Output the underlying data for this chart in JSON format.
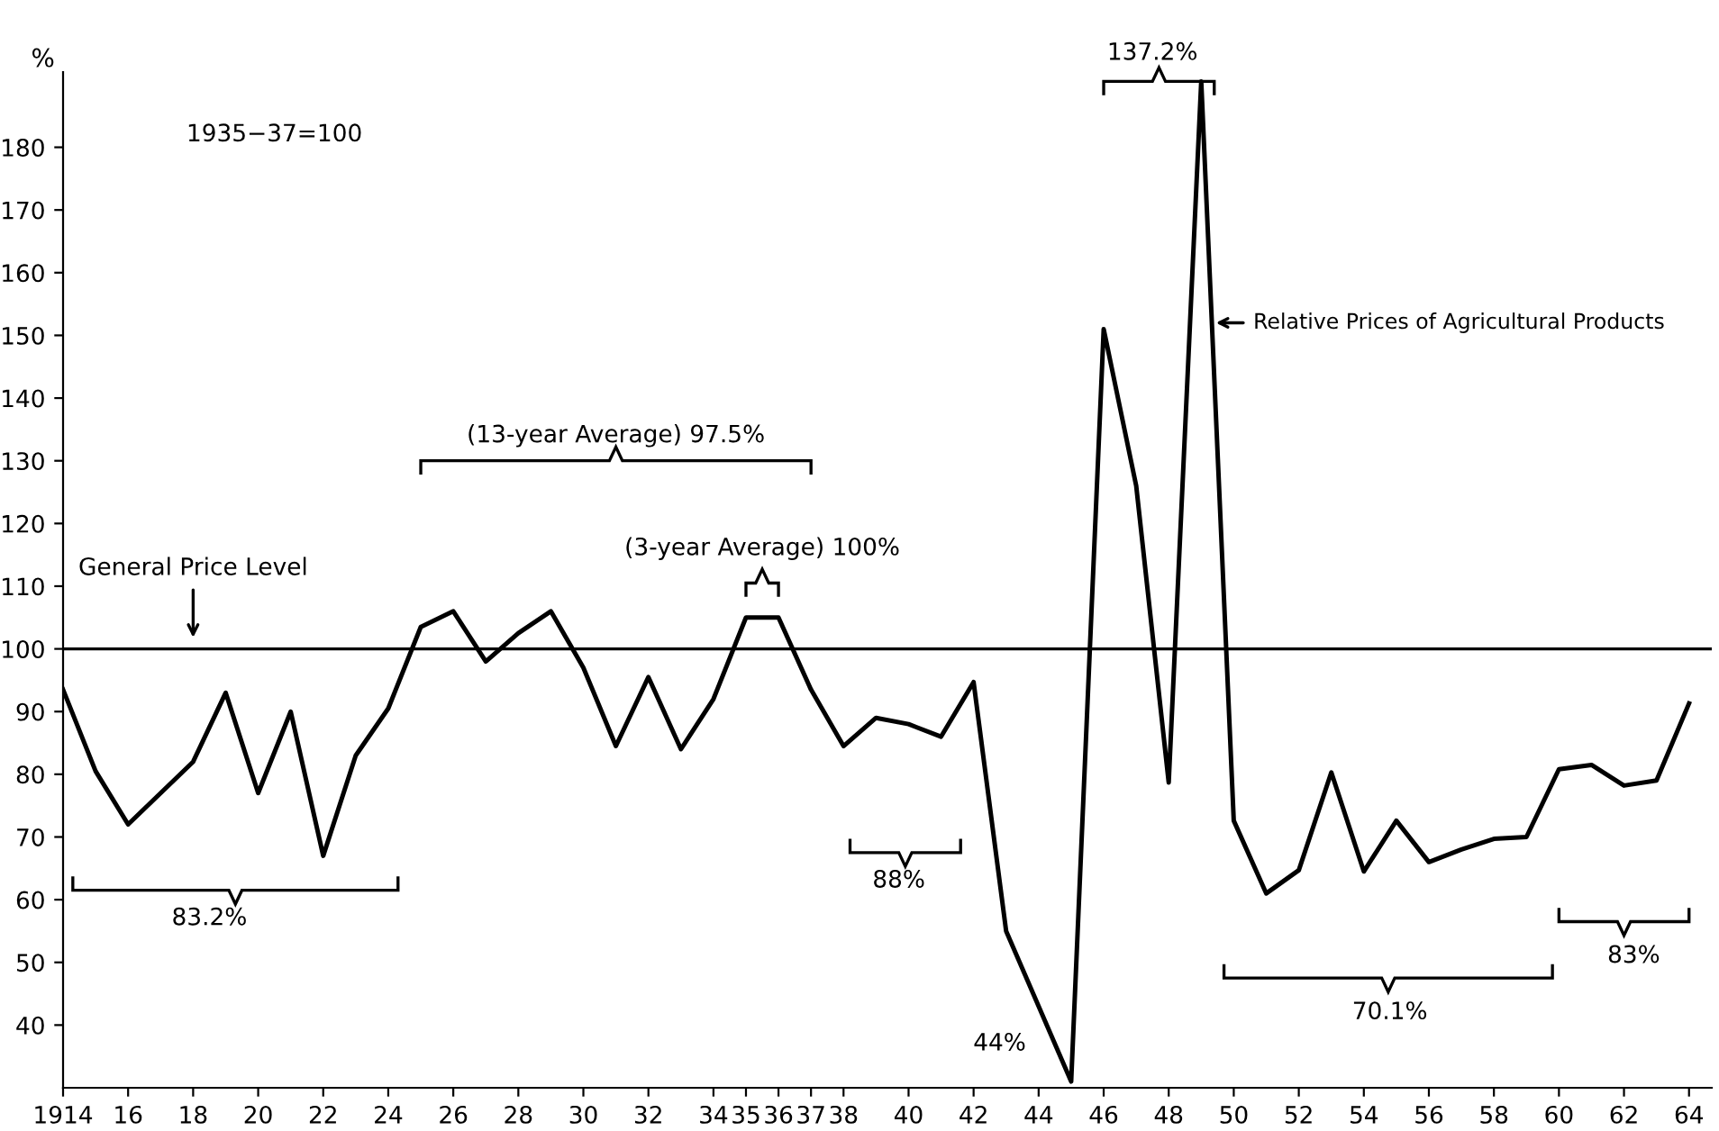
{
  "chart_data": {
    "type": "line",
    "ylabel": "%",
    "x": [
      1914,
      1915,
      1916,
      1917,
      1918,
      1919,
      1920,
      1921,
      1922,
      1923,
      1924,
      1925,
      1926,
      1927,
      1928,
      1929,
      1930,
      1931,
      1932,
      1933,
      1934,
      1935,
      1936,
      1937,
      1938,
      1939,
      1940,
      1941,
      1942,
      1943,
      1944,
      1945,
      1946,
      1947,
      1948,
      1949,
      1950,
      1951,
      1952,
      1953,
      1954,
      1955,
      1956,
      1957,
      1958,
      1959,
      1960,
      1961,
      1962,
      1963,
      1964
    ],
    "series": [
      {
        "name": "Relative Prices of Agricultural Products",
        "color": "#000000",
        "values": [
          93.5,
          80.5,
          72,
          77,
          82,
          93,
          77,
          90,
          67,
          83,
          90.5,
          103.5,
          106,
          98,
          102.5,
          106,
          97,
          84.5,
          95.5,
          84,
          92,
          105,
          105,
          93.5,
          84.5,
          89,
          88,
          86,
          94.7,
          55,
          43,
          31,
          151,
          126,
          78.7,
          190.5,
          72.6,
          61,
          64.7,
          80.3,
          64.5,
          72.6,
          66,
          68,
          69.7,
          70,
          80.8,
          81.5,
          78.2,
          79,
          91.3
        ]
      }
    ],
    "xlim": [
      1914,
      1964.7
    ],
    "ylim": [
      30,
      192
    ],
    "xticks": [
      {
        "value": 1914,
        "label": "1914"
      },
      {
        "value": 1916,
        "label": "16"
      },
      {
        "value": 1918,
        "label": "18"
      },
      {
        "value": 1920,
        "label": "20"
      },
      {
        "value": 1922,
        "label": "22"
      },
      {
        "value": 1924,
        "label": "24"
      },
      {
        "value": 1926,
        "label": "26"
      },
      {
        "value": 1928,
        "label": "28"
      },
      {
        "value": 1930,
        "label": "30"
      },
      {
        "value": 1932,
        "label": "32"
      },
      {
        "value": 1934,
        "label": "34"
      },
      {
        "value": 1935,
        "label": "35"
      },
      {
        "value": 1936,
        "label": "36"
      },
      {
        "value": 1937,
        "label": "37"
      },
      {
        "value": 1938,
        "label": "38"
      },
      {
        "value": 1940,
        "label": "40"
      },
      {
        "value": 1942,
        "label": "42"
      },
      {
        "value": 1944,
        "label": "44"
      },
      {
        "value": 1946,
        "label": "46"
      },
      {
        "value": 1948,
        "label": "48"
      },
      {
        "value": 1950,
        "label": "50"
      },
      {
        "value": 1952,
        "label": "52"
      },
      {
        "value": 1954,
        "label": "54"
      },
      {
        "value": 1956,
        "label": "56"
      },
      {
        "value": 1958,
        "label": "58"
      },
      {
        "value": 1960,
        "label": "60"
      },
      {
        "value": 1962,
        "label": "62"
      },
      {
        "value": 1964,
        "label": "64"
      }
    ],
    "yticks": [
      40,
      50,
      60,
      70,
      80,
      90,
      100,
      110,
      120,
      130,
      140,
      150,
      160,
      170,
      180
    ],
    "ref_lines": [
      {
        "axis": "y",
        "value": 100,
        "label": "General Price Level",
        "color": "#000000",
        "line_style": "solid"
      }
    ],
    "annotations": [
      "1935−37=100",
      "(13-year Average) 97.5%",
      "(3-year Average) 100%",
      "83.2%",
      "88%",
      "44%",
      "70.1%",
      "83%",
      "137.2%"
    ],
    "grid": false,
    "legend": "right",
    "marker": "none",
    "line_style": "solid"
  }
}
